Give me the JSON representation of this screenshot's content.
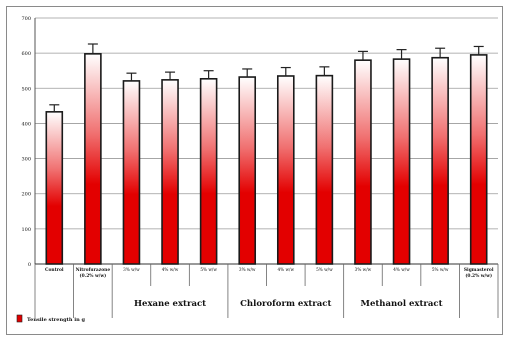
{
  "chart_data": {
    "type": "bar",
    "title": "",
    "xlabel": "",
    "ylabel": "",
    "ylim": [
      0,
      700
    ],
    "yticks": [
      "0",
      "100",
      "200",
      "300",
      "400",
      "500",
      "600",
      "700"
    ],
    "grid": true,
    "legend_position": "bottom-left",
    "categories": [
      "Control",
      "Nitrofurazone (0.2% w/w)",
      "3% w/w",
      "4% w/w",
      "5% w/w",
      "3% w/w",
      "4% w/w",
      "5% w/w",
      "3% w/w",
      "4% w/w",
      "5% w/w",
      "Sigmasterol (0.2% w/w)"
    ],
    "groups": [
      {
        "label": "Hexane extract",
        "start": 2,
        "end": 4
      },
      {
        "label": "Chloroform extract",
        "start": 5,
        "end": 7
      },
      {
        "label": "Methanol extract",
        "start": 8,
        "end": 10
      }
    ],
    "series": [
      {
        "name": "Tensile strength in g",
        "color": "#e00000",
        "values": [
          433,
          598,
          521,
          524,
          527,
          532,
          535,
          536,
          580,
          583,
          587,
          595
        ],
        "errors": [
          20,
          28,
          22,
          22,
          23,
          23,
          24,
          25,
          25,
          27,
          27,
          24
        ]
      }
    ]
  }
}
